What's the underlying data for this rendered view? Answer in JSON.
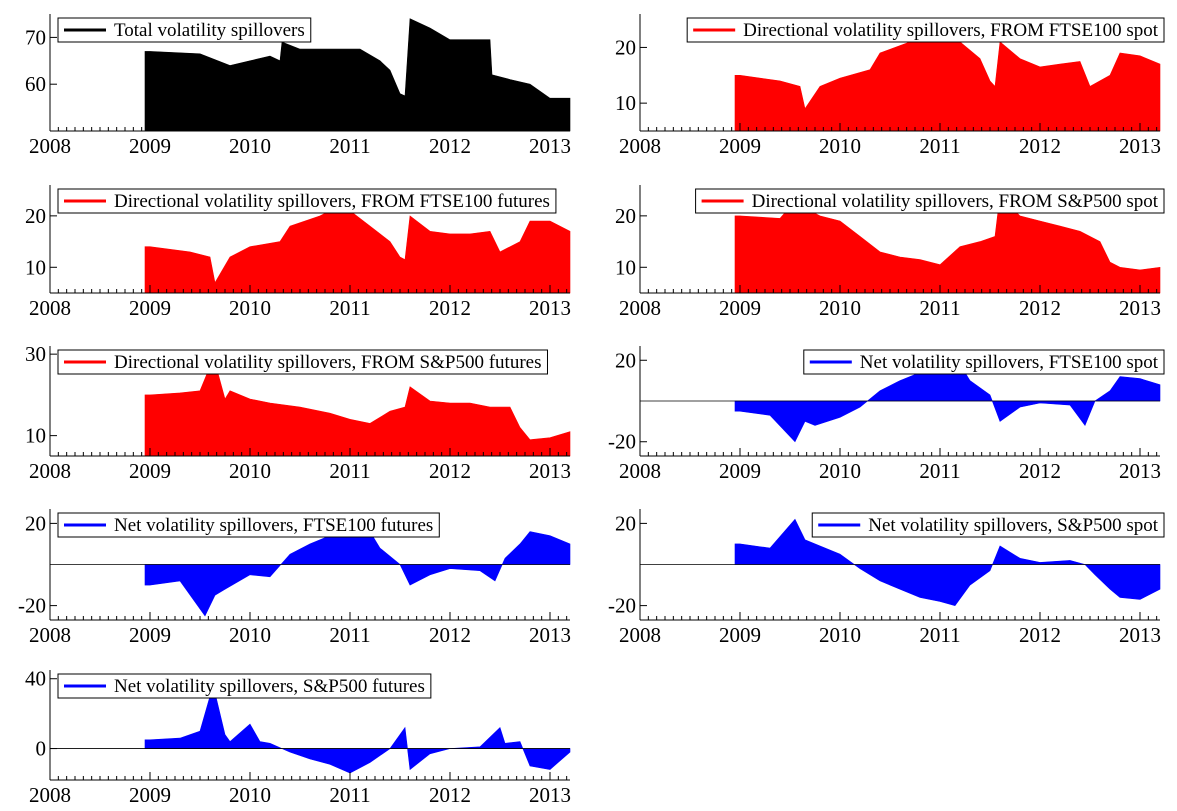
{
  "chart_data": [
    {
      "type": "area",
      "title": "Total volatility spillovers",
      "color": "#000000",
      "x_ticks": [
        "2008",
        "2009",
        "2010",
        "2011",
        "2012",
        "2013"
      ],
      "y_ticks": [
        60,
        70
      ],
      "ylim": [
        50,
        75
      ],
      "baseline": 50,
      "x": [
        2008.95,
        2009.0,
        2009.5,
        2009.8,
        2010.0,
        2010.2,
        2010.3,
        2010.32,
        2010.5,
        2010.8,
        2011.0,
        2011.1,
        2011.3,
        2011.4,
        2011.5,
        2011.55,
        2011.6,
        2011.8,
        2012.0,
        2012.2,
        2012.4,
        2012.42,
        2012.6,
        2012.8,
        2013.0,
        2013.2
      ],
      "values": [
        67,
        67,
        66.5,
        64,
        65,
        66,
        65,
        69,
        67.5,
        67.5,
        67.5,
        67.5,
        65,
        63,
        58,
        57.5,
        74,
        72,
        69.5,
        69.5,
        69.5,
        62,
        61,
        60,
        57,
        57
      ],
      "legend_position": "top-left"
    },
    {
      "type": "area",
      "title": "Directional volatility spillovers, FROM FTSE100 spot",
      "color": "#ff0000",
      "x_ticks": [
        "2008",
        "2009",
        "2010",
        "2011",
        "2012",
        "2013"
      ],
      "y_ticks": [
        10,
        20
      ],
      "ylim": [
        5,
        26
      ],
      "baseline": 5,
      "x": [
        2008.95,
        2009.0,
        2009.4,
        2009.6,
        2009.65,
        2009.8,
        2010.0,
        2010.3,
        2010.4,
        2010.7,
        2010.9,
        2011.0,
        2011.2,
        2011.4,
        2011.5,
        2011.55,
        2011.6,
        2011.8,
        2012.0,
        2012.2,
        2012.4,
        2012.5,
        2012.7,
        2012.8,
        2013.0,
        2013.2
      ],
      "values": [
        15,
        15,
        14,
        13,
        9,
        13,
        14.5,
        16,
        19,
        21,
        23,
        22,
        21,
        18,
        14,
        13,
        21,
        18,
        16.5,
        17,
        17.5,
        13,
        15,
        19,
        18.5,
        17
      ],
      "legend_position": "top-right"
    },
    {
      "type": "area",
      "title": "Directional volatility spillovers, FROM FTSE100 futures",
      "color": "#ff0000",
      "x_ticks": [
        "2008",
        "2009",
        "2010",
        "2011",
        "2012",
        "2013"
      ],
      "y_ticks": [
        10,
        20
      ],
      "ylim": [
        5,
        26
      ],
      "baseline": 5,
      "x": [
        2008.95,
        2009.0,
        2009.4,
        2009.6,
        2009.65,
        2009.8,
        2010.0,
        2010.3,
        2010.4,
        2010.7,
        2010.9,
        2011.0,
        2011.2,
        2011.4,
        2011.5,
        2011.55,
        2011.6,
        2011.8,
        2012.0,
        2012.2,
        2012.4,
        2012.5,
        2012.7,
        2012.8,
        2013.0,
        2013.2
      ],
      "values": [
        14,
        14,
        13,
        12,
        7,
        12,
        14,
        15,
        18,
        20,
        22,
        21,
        18,
        15,
        12,
        11.5,
        20,
        17,
        16.5,
        16.5,
        17,
        13,
        15,
        19,
        19,
        17
      ],
      "legend_position": "top-left"
    },
    {
      "type": "area",
      "title": "Directional volatility spillovers, FROM S&P500 spot",
      "color": "#ff0000",
      "x_ticks": [
        "2008",
        "2009",
        "2010",
        "2011",
        "2012",
        "2013"
      ],
      "y_ticks": [
        10,
        20
      ],
      "ylim": [
        5,
        26
      ],
      "baseline": 5,
      "x": [
        2008.95,
        2009.0,
        2009.4,
        2009.6,
        2009.7,
        2009.8,
        2010.0,
        2010.2,
        2010.4,
        2010.6,
        2010.8,
        2011.0,
        2011.2,
        2011.4,
        2011.55,
        2011.6,
        2011.8,
        2012.0,
        2012.2,
        2012.4,
        2012.6,
        2012.7,
        2012.8,
        2013.0,
        2013.2
      ],
      "values": [
        20,
        20,
        19.5,
        24,
        21,
        20,
        19,
        16,
        13,
        12,
        11.5,
        10.5,
        14,
        15,
        16,
        24,
        20,
        19,
        18,
        17,
        15,
        11,
        10,
        9.5,
        10
      ],
      "legend_position": "top-right"
    },
    {
      "type": "area",
      "title": "Directional volatility spillovers, FROM S&P500 futures",
      "color": "#ff0000",
      "x_ticks": [
        "2008",
        "2009",
        "2010",
        "2011",
        "2012",
        "2013"
      ],
      "y_ticks": [
        10,
        30
      ],
      "ylim": [
        5,
        32
      ],
      "baseline": 5,
      "x": [
        2008.95,
        2009.0,
        2009.3,
        2009.5,
        2009.6,
        2009.65,
        2009.75,
        2009.8,
        2010.0,
        2010.2,
        2010.5,
        2010.8,
        2011.0,
        2011.2,
        2011.4,
        2011.55,
        2011.6,
        2011.8,
        2012.0,
        2012.2,
        2012.4,
        2012.6,
        2012.7,
        2012.8,
        2013.0,
        2013.2
      ],
      "values": [
        20,
        20,
        20.5,
        21,
        27,
        28,
        19,
        21,
        19,
        18,
        17,
        15.5,
        14,
        13,
        16,
        17,
        22,
        18.5,
        18,
        18,
        17,
        17,
        12,
        9,
        9.5,
        11
      ],
      "legend_position": "top-left"
    },
    {
      "type": "area",
      "title": "Net volatility spillovers, FTSE100 spot",
      "color": "#0000ff",
      "x_ticks": [
        "2008",
        "2009",
        "2010",
        "2011",
        "2012",
        "2013"
      ],
      "y_ticks": [
        -20,
        20
      ],
      "ylim": [
        -27,
        27
      ],
      "baseline": 0,
      "x": [
        2008.95,
        2009.0,
        2009.3,
        2009.55,
        2009.65,
        2009.75,
        2010.0,
        2010.2,
        2010.4,
        2010.6,
        2010.8,
        2011.0,
        2011.15,
        2011.3,
        2011.5,
        2011.6,
        2011.8,
        2012.0,
        2012.3,
        2012.45,
        2012.55,
        2012.7,
        2012.8,
        2013.0,
        2013.2
      ],
      "values": [
        -5,
        -5,
        -7,
        -20,
        -10,
        -12,
        -8,
        -3,
        5,
        10,
        14,
        16,
        22,
        10,
        3,
        -10,
        -3,
        -1,
        -2,
        -12,
        0,
        5,
        12,
        11,
        8
      ],
      "legend_position": "top-right"
    },
    {
      "type": "area",
      "title": "Net volatility spillovers, FTSE100 futures",
      "color": "#0000ff",
      "x_ticks": [
        "2008",
        "2009",
        "2010",
        "2011",
        "2012",
        "2013"
      ],
      "y_ticks": [
        -20,
        20
      ],
      "ylim": [
        -27,
        27
      ],
      "baseline": 0,
      "x": [
        2008.95,
        2009.0,
        2009.3,
        2009.55,
        2009.65,
        2009.75,
        2010.0,
        2010.2,
        2010.4,
        2010.6,
        2010.8,
        2011.0,
        2011.15,
        2011.3,
        2011.5,
        2011.6,
        2011.8,
        2012.0,
        2012.3,
        2012.45,
        2012.55,
        2012.7,
        2012.8,
        2013.0,
        2013.2
      ],
      "values": [
        -10,
        -10,
        -8,
        -25,
        -15,
        -12,
        -5,
        -6,
        5,
        10,
        14,
        16,
        20,
        8,
        0,
        -10,
        -5,
        -2,
        -3,
        -8,
        3,
        10,
        16,
        14,
        10
      ],
      "legend_position": "top-left"
    },
    {
      "type": "area",
      "title": "Net volatility spillovers, S&P500 spot",
      "color": "#0000ff",
      "x_ticks": [
        "2008",
        "2009",
        "2010",
        "2011",
        "2012",
        "2013"
      ],
      "y_ticks": [
        -20,
        20
      ],
      "ylim": [
        -27,
        27
      ],
      "baseline": 0,
      "x": [
        2008.95,
        2009.0,
        2009.3,
        2009.55,
        2009.65,
        2009.75,
        2010.0,
        2010.2,
        2010.4,
        2010.6,
        2010.8,
        2011.0,
        2011.15,
        2011.3,
        2011.5,
        2011.6,
        2011.8,
        2012.0,
        2012.3,
        2012.45,
        2012.55,
        2012.7,
        2012.8,
        2013.0,
        2013.2
      ],
      "values": [
        10,
        10,
        8,
        22,
        12,
        10,
        5,
        -2,
        -8,
        -12,
        -16,
        -18,
        -20,
        -10,
        -3,
        9,
        3,
        1,
        2,
        0,
        -5,
        -12,
        -16,
        -17,
        -12
      ],
      "legend_position": "top-right"
    },
    {
      "type": "area",
      "title": "Net volatility spillovers, S&P500 futures",
      "color": "#0000ff",
      "x_ticks": [
        "2008",
        "2009",
        "2010",
        "2011",
        "2012",
        "2013"
      ],
      "y_ticks": [
        0,
        40
      ],
      "ylim": [
        -18,
        45
      ],
      "baseline": 0,
      "x": [
        2008.95,
        2009.0,
        2009.3,
        2009.5,
        2009.6,
        2009.65,
        2009.75,
        2009.8,
        2010.0,
        2010.1,
        2010.2,
        2010.4,
        2010.6,
        2010.8,
        2011.0,
        2011.2,
        2011.4,
        2011.55,
        2011.6,
        2011.8,
        2012.0,
        2012.3,
        2012.5,
        2012.55,
        2012.7,
        2012.8,
        2013.0,
        2013.2
      ],
      "values": [
        5,
        5,
        6,
        10,
        30,
        32,
        8,
        4,
        14,
        4,
        3,
        -2,
        -6,
        -9,
        -14,
        -8,
        0,
        12,
        -12,
        -3,
        0,
        1,
        12,
        3,
        4,
        -10,
        -12,
        -2
      ],
      "legend_position": "top-left"
    }
  ]
}
